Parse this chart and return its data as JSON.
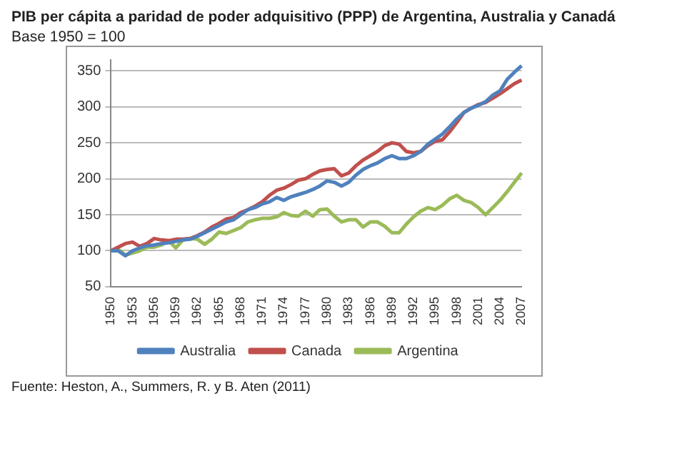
{
  "chart_data": {
    "type": "line",
    "title": "PIB per cápita a paridad de poder adquisitivo (PPP) de Argentina, Australia y Canadá",
    "subtitle": "Base 1950 = 100",
    "categories": [
      "1950",
      null,
      null,
      "1953",
      null,
      null,
      "1956",
      null,
      null,
      "1959",
      null,
      null,
      "1962",
      null,
      null,
      "1965",
      null,
      null,
      "1968",
      null,
      null,
      "1971",
      null,
      null,
      "1974",
      null,
      null,
      "1977",
      null,
      null,
      "1980",
      null,
      null,
      "1983",
      null,
      null,
      "1986",
      null,
      null,
      "1989",
      null,
      null,
      "1992",
      null,
      null,
      "1995",
      null,
      null,
      "1998",
      null,
      null,
      "2001",
      null,
      null,
      "2004",
      null,
      null,
      "2007"
    ],
    "series": [
      {
        "name": "Australia",
        "color": "#4f81bd",
        "values": [
          100,
          100,
          93,
          100,
          104,
          107,
          108,
          110,
          111,
          113,
          115,
          116,
          120,
          125,
          130,
          135,
          140,
          143,
          150,
          157,
          160,
          165,
          168,
          174,
          170,
          175,
          178,
          181,
          185,
          190,
          197,
          195,
          190,
          195,
          205,
          213,
          218,
          222,
          228,
          232,
          228,
          228,
          232,
          238,
          248,
          255,
          262,
          272,
          283,
          292,
          298,
          302,
          307,
          316,
          322,
          338,
          348,
          357
        ]
      },
      {
        "name": "Canada",
        "color": "#c0504d",
        "values": [
          100,
          105,
          110,
          112,
          106,
          110,
          117,
          115,
          114,
          116,
          116,
          117,
          121,
          126,
          133,
          138,
          144,
          146,
          153,
          157,
          162,
          168,
          177,
          184,
          187,
          192,
          198,
          200,
          206,
          211,
          213,
          214,
          204,
          208,
          218,
          226,
          232,
          238,
          246,
          250,
          248,
          238,
          236,
          238,
          246,
          252,
          254,
          265,
          278,
          292,
          298,
          303,
          306,
          312,
          318,
          325,
          332,
          337
        ]
      },
      {
        "name": "Argentina",
        "color": "#9bbb59",
        "values": [
          100,
          102,
          94,
          97,
          100,
          105,
          105,
          108,
          114,
          104,
          115,
          117,
          116,
          109,
          116,
          126,
          124,
          128,
          132,
          140,
          143,
          145,
          145,
          147,
          153,
          149,
          148,
          155,
          148,
          157,
          158,
          148,
          140,
          143,
          143,
          133,
          140,
          140,
          134,
          125,
          125,
          137,
          147,
          155,
          160,
          157,
          163,
          172,
          177,
          170,
          167,
          160,
          150,
          160,
          170,
          182,
          195,
          208
        ]
      }
    ],
    "ylim": [
      50,
      365
    ],
    "yticks": [
      50,
      100,
      150,
      200,
      250,
      300,
      350
    ],
    "grid": "y",
    "legend": "bottom",
    "marker": "none",
    "line_style": "solid",
    "annotations": [
      "Fuente: Heston, A., Summers, R. y B. Aten (2011)"
    ]
  }
}
